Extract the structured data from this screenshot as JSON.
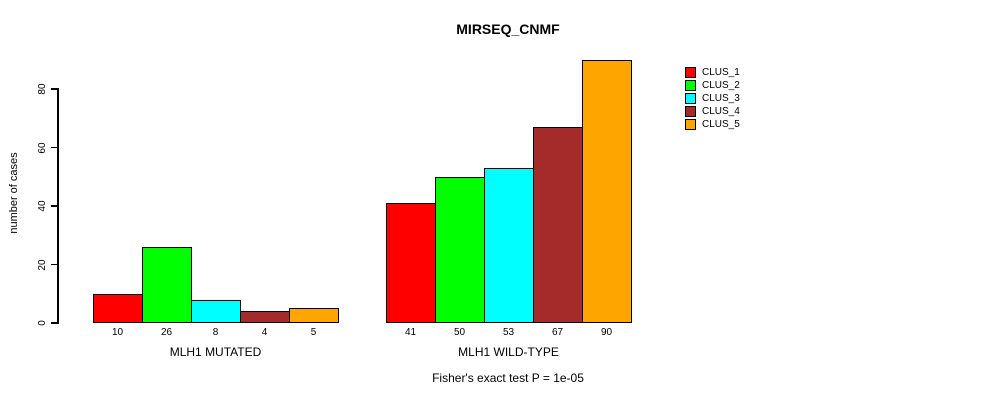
{
  "chart_data": {
    "type": "bar",
    "title": "MIRSEQ_CNMF",
    "ylabel": "number of cases",
    "xlabel": "",
    "ylim": [
      0,
      90
    ],
    "yticks": [
      0,
      20,
      40,
      60,
      80
    ],
    "grid": false,
    "legend_position": "top-right",
    "legend": [
      "CLUS_1",
      "CLUS_2",
      "CLUS_3",
      "CLUS_4",
      "CLUS_5"
    ],
    "colors": [
      "#FF0000",
      "#00FF00",
      "#00FFFF",
      "#A52A2A",
      "#FFA500"
    ],
    "categories": [
      "MLH1 MUTATED",
      "MLH1 WILD-TYPE"
    ],
    "series": [
      {
        "name": "CLUS_1",
        "values": [
          10,
          41
        ]
      },
      {
        "name": "CLUS_2",
        "values": [
          26,
          50
        ]
      },
      {
        "name": "CLUS_3",
        "values": [
          8,
          53
        ]
      },
      {
        "name": "CLUS_4",
        "values": [
          4,
          67
        ]
      },
      {
        "name": "CLUS_5",
        "values": [
          5,
          90
        ]
      }
    ],
    "groups": [
      {
        "label": "MLH1 MUTATED",
        "values": [
          10,
          26,
          8,
          4,
          5
        ]
      },
      {
        "label": "MLH1 WILD-TYPE",
        "values": [
          41,
          50,
          53,
          67,
          90
        ]
      }
    ],
    "annotation": "Fisher's exact test P = 1e-05"
  }
}
